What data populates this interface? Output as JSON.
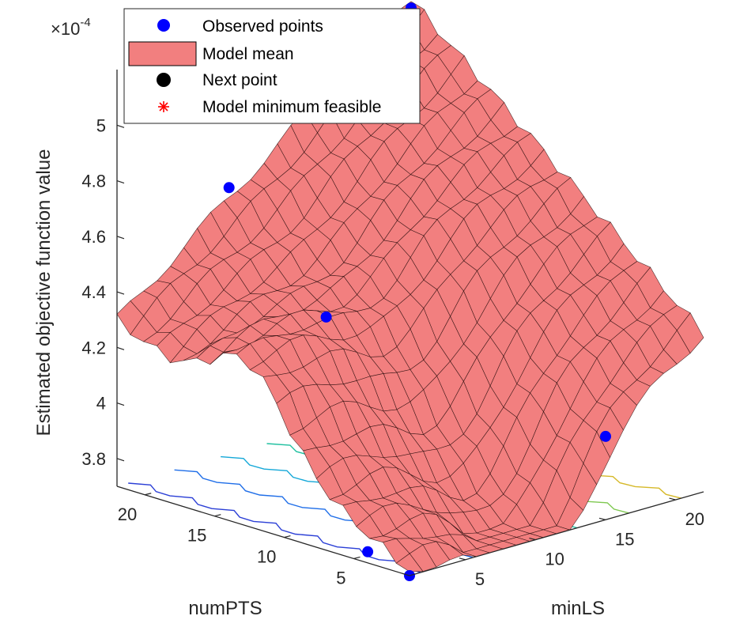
{
  "chart_data": {
    "type": "surface",
    "title": "",
    "xlabel": "numPTS",
    "ylabel": "minLS",
    "zlabel": "Estimated objective function value",
    "exponent_label": "×10",
    "exponent_power": "-4",
    "xticks": [
      "5",
      "10",
      "15",
      "20"
    ],
    "yticks": [
      "5",
      "10",
      "15",
      "20"
    ],
    "zticks": [
      "3.8",
      "4",
      "4.2",
      "4.4",
      "4.6",
      "4.8",
      "5"
    ],
    "x_range": [
      1,
      22
    ],
    "y_range": [
      1,
      22
    ],
    "z_range": [
      3.7,
      5.2
    ],
    "z_scale": "1e-4",
    "legend": {
      "placement": "top-left",
      "entries": [
        {
          "label": "Observed points",
          "marker": "circle",
          "color": "#0000ff"
        },
        {
          "label": "Model mean",
          "marker": "patch",
          "color": "#f27f7f"
        },
        {
          "label": "Next point",
          "marker": "circle",
          "color": "#000000"
        },
        {
          "label": "Model minimum feasible",
          "marker": "asterisk",
          "color": "#ff0000"
        }
      ]
    },
    "surface_color": "#f27f7f",
    "edge_color": "#1a0000",
    "observed_points": [
      {
        "x": 22,
        "y": 22,
        "z": 5.12
      },
      {
        "x": 22,
        "y": 14,
        "z": 4.9
      },
      {
        "x": 22,
        "y": 9,
        "z": 4.66
      },
      {
        "x": 10,
        "y": 4,
        "z": 4.45
      },
      {
        "x": 1,
        "y": 15,
        "z": 4.0
      },
      {
        "x": 4,
        "y": 1,
        "z": 3.74
      },
      {
        "x": 1,
        "y": 1,
        "z": 3.7
      }
    ],
    "contour_colors": [
      "#2b3fd6",
      "#1f6ee8",
      "#15a8d8",
      "#20c0a0",
      "#7ec850",
      "#d6b92a"
    ],
    "grid": false
  }
}
